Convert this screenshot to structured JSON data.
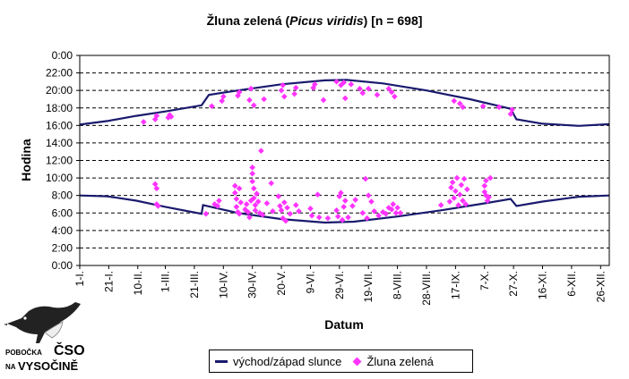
{
  "title": {
    "main": "Žluna zelená",
    "italic": "Picus viridis",
    "suffix": "[n = 698]"
  },
  "chart_data": {
    "type": "scatter",
    "title": "Žluna zelená (Picus viridis) [n = 698]",
    "xlabel": "Datum",
    "ylabel": "Hodina",
    "xlim": [
      1,
      366
    ],
    "ylim": [
      0,
      24
    ],
    "y_ticks": [
      "0:00",
      "2:00",
      "4:00",
      "6:00",
      "8:00",
      "10:00",
      "12:00",
      "14:00",
      "16:00",
      "18:00",
      "20:00",
      "22:00",
      "0:00"
    ],
    "x_ticks": [
      {
        "label": "1-I.",
        "day": 1
      },
      {
        "label": "21-I.",
        "day": 21
      },
      {
        "label": "10-II.",
        "day": 41
      },
      {
        "label": "1-III.",
        "day": 60
      },
      {
        "label": "21-III.",
        "day": 80
      },
      {
        "label": "10-IV.",
        "day": 100
      },
      {
        "label": "30-IV.",
        "day": 120
      },
      {
        "label": "20-V.",
        "day": 140
      },
      {
        "label": "9-VI.",
        "day": 160
      },
      {
        "label": "29-VI.",
        "day": 180
      },
      {
        "label": "19-VII.",
        "day": 200
      },
      {
        "label": "8-VIII.",
        "day": 220
      },
      {
        "label": "28-VIII.",
        "day": 240
      },
      {
        "label": "17-IX.",
        "day": 260
      },
      {
        "label": "7-X.",
        "day": 280
      },
      {
        "label": "27-X.",
        "day": 300
      },
      {
        "label": "16-XI.",
        "day": 320
      },
      {
        "label": "6-XII.",
        "day": 340
      },
      {
        "label": "26-XII.",
        "day": 360
      }
    ],
    "series": [
      {
        "name": "východ/západ slunce",
        "kind": "line",
        "color": "#1a1a6e",
        "sunrise": [
          [
            1,
            8.0
          ],
          [
            20,
            7.9
          ],
          [
            40,
            7.4
          ],
          [
            60,
            6.7
          ],
          [
            85,
            5.9
          ],
          [
            86,
            6.9
          ],
          [
            110,
            6.0
          ],
          [
            140,
            5.3
          ],
          [
            170,
            4.9
          ],
          [
            190,
            5.0
          ],
          [
            220,
            5.6
          ],
          [
            250,
            6.3
          ],
          [
            280,
            7.1
          ],
          [
            298,
            7.6
          ],
          [
            302,
            6.8
          ],
          [
            320,
            7.3
          ],
          [
            345,
            7.85
          ],
          [
            366,
            8.0
          ]
        ],
        "sunset": [
          [
            1,
            16.1
          ],
          [
            20,
            16.5
          ],
          [
            40,
            17.1
          ],
          [
            60,
            17.6
          ],
          [
            85,
            18.3
          ],
          [
            90,
            19.5
          ],
          [
            110,
            20.0
          ],
          [
            140,
            20.7
          ],
          [
            170,
            21.15
          ],
          [
            185,
            21.2
          ],
          [
            210,
            20.8
          ],
          [
            240,
            20.0
          ],
          [
            270,
            19.0
          ],
          [
            298,
            17.9
          ],
          [
            302,
            16.7
          ],
          [
            320,
            16.2
          ],
          [
            345,
            15.95
          ],
          [
            366,
            16.15
          ]
        ]
      },
      {
        "name": "Žluna zelená",
        "kind": "scatter",
        "color": "#ff33ff",
        "points": [
          [
            45,
            16.4
          ],
          [
            53,
            16.7
          ],
          [
            54,
            17.1
          ],
          [
            62,
            16.9
          ],
          [
            63,
            17.2
          ],
          [
            64,
            17.0
          ],
          [
            53,
            9.3
          ],
          [
            54,
            8.8
          ],
          [
            54,
            7.0
          ],
          [
            55,
            6.8
          ],
          [
            88,
            5.9
          ],
          [
            94,
            7.0
          ],
          [
            96,
            6.8
          ],
          [
            97,
            7.4
          ],
          [
            92,
            18.2
          ],
          [
            99,
            18.8
          ],
          [
            100,
            19.3
          ],
          [
            110,
            19.4
          ],
          [
            111,
            19.8
          ],
          [
            118,
            18.9
          ],
          [
            119,
            20.2
          ],
          [
            121,
            18.3
          ],
          [
            128,
            19.0
          ],
          [
            140,
            20.0
          ],
          [
            141,
            20.6
          ],
          [
            142,
            19.3
          ],
          [
            149,
            19.6
          ],
          [
            150,
            20.3
          ],
          [
            162,
            20.3
          ],
          [
            163,
            20.7
          ],
          [
            169,
            18.9
          ],
          [
            178,
            21.0
          ],
          [
            181,
            20.6
          ],
          [
            183,
            20.9
          ],
          [
            184,
            19.1
          ],
          [
            188,
            20.7
          ],
          [
            194,
            20.2
          ],
          [
            196,
            19.7
          ],
          [
            200,
            20.2
          ],
          [
            206,
            19.5
          ],
          [
            214,
            20.2
          ],
          [
            216,
            19.8
          ],
          [
            218,
            19.3
          ],
          [
            259,
            18.8
          ],
          [
            263,
            18.5
          ],
          [
            265,
            18.1
          ],
          [
            279,
            18.2
          ],
          [
            290,
            18.1
          ],
          [
            298,
            17.3
          ],
          [
            299,
            17.8
          ],
          [
            108,
            9.1
          ],
          [
            108,
            8.3
          ],
          [
            109,
            7.6
          ],
          [
            109,
            6.7
          ],
          [
            110,
            6.1
          ],
          [
            111,
            5.9
          ],
          [
            111,
            8.8
          ],
          [
            112,
            7.2
          ],
          [
            115,
            6.4
          ],
          [
            116,
            7.0
          ],
          [
            117,
            6.1
          ],
          [
            118,
            5.5
          ],
          [
            119,
            7.4
          ],
          [
            120,
            11.2
          ],
          [
            120,
            10.5
          ],
          [
            120,
            9.6
          ],
          [
            121,
            8.8
          ],
          [
            121,
            7.7
          ],
          [
            122,
            6.9
          ],
          [
            122,
            6.3
          ],
          [
            123,
            8.2
          ],
          [
            124,
            7.3
          ],
          [
            125,
            6.0
          ],
          [
            126,
            13.1
          ],
          [
            127,
            5.8
          ],
          [
            130,
            7.1
          ],
          [
            133,
            9.4
          ],
          [
            134,
            6.2
          ],
          [
            138,
            7.9
          ],
          [
            139,
            6.8
          ],
          [
            140,
            6.3
          ],
          [
            141,
            5.4
          ],
          [
            142,
            7.2
          ],
          [
            143,
            5.1
          ],
          [
            144,
            6.6
          ],
          [
            146,
            5.9
          ],
          [
            150,
            6.9
          ],
          [
            152,
            6.2
          ],
          [
            160,
            6.5
          ],
          [
            161,
            5.7
          ],
          [
            165,
            8.1
          ],
          [
            166,
            5.5
          ],
          [
            172,
            5.4
          ],
          [
            178,
            6.3
          ],
          [
            179,
            5.6
          ],
          [
            180,
            7.9
          ],
          [
            181,
            8.3
          ],
          [
            182,
            5.2
          ],
          [
            183,
            6.7
          ],
          [
            184,
            7.4
          ],
          [
            186,
            5.5
          ],
          [
            189,
            6.8
          ],
          [
            191,
            7.5
          ],
          [
            196,
            6.0
          ],
          [
            198,
            9.9
          ],
          [
            199,
            5.4
          ],
          [
            200,
            8.0
          ],
          [
            202,
            7.3
          ],
          [
            204,
            6.2
          ],
          [
            207,
            5.7
          ],
          [
            210,
            6.1
          ],
          [
            212,
            5.9
          ],
          [
            214,
            6.6
          ],
          [
            216,
            6.4
          ],
          [
            217,
            7.0
          ],
          [
            219,
            6.0
          ],
          [
            220,
            6.6
          ],
          [
            222,
            6.0
          ],
          [
            250,
            6.9
          ],
          [
            256,
            7.3
          ],
          [
            257,
            8.9
          ],
          [
            258,
            9.5
          ],
          [
            259,
            7.7
          ],
          [
            260,
            8.5
          ],
          [
            261,
            10.0
          ],
          [
            262,
            6.9
          ],
          [
            263,
            8.1
          ],
          [
            264,
            9.2
          ],
          [
            265,
            7.4
          ],
          [
            266,
            9.9
          ],
          [
            267,
            7.0
          ],
          [
            268,
            8.7
          ],
          [
            280,
            9.1
          ],
          [
            280,
            8.4
          ],
          [
            281,
            9.7
          ],
          [
            281,
            8.0
          ],
          [
            282,
            7.4
          ],
          [
            283,
            7.8
          ],
          [
            284,
            10.0
          ]
        ]
      }
    ],
    "legend": [
      "východ/západ slunce",
      "Žluna zelená"
    ],
    "gridlines": "dashed horizontal"
  },
  "logo": {
    "line1": "POBOČKA",
    "line2": "ČSO",
    "line3": "NA",
    "line4": "VYSOČINĚ"
  }
}
